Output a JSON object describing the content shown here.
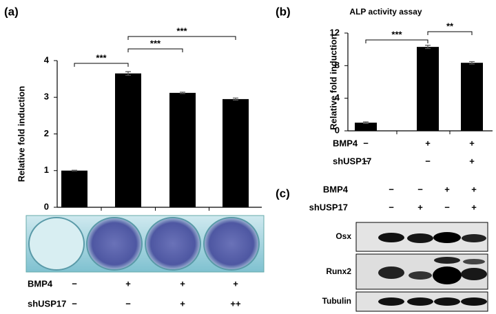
{
  "chart_data": [
    {
      "type": "bar",
      "panel_label": "(a)",
      "y_label": "Relative fold induction",
      "categories": [
        null,
        null,
        null,
        null
      ],
      "values": [
        1.0,
        3.65,
        3.12,
        2.95
      ],
      "errors": [
        0.01,
        0.05,
        0.02,
        0.03
      ],
      "color": "#000000",
      "ylim": [
        0,
        4
      ],
      "yticks": [
        0,
        1,
        2,
        3,
        4
      ],
      "annotations": [
        "***",
        "***",
        "***"
      ],
      "treatments": [
        {
          "label": "BMP4",
          "signs": [
            "−",
            "+",
            "+",
            "+"
          ]
        },
        {
          "label": "shUSP17",
          "signs": [
            "−",
            "−",
            "+",
            "++"
          ]
        }
      ]
    },
    {
      "type": "bar",
      "panel_label": "(b)",
      "title": "ALP activity assay",
      "y_label": "Relative fold induction",
      "categories": [
        null,
        null,
        null
      ],
      "values": [
        1.0,
        10.3,
        8.35
      ],
      "errors": [
        0.1,
        0.2,
        0.15
      ],
      "color": "#000000",
      "ylim": [
        0,
        12
      ],
      "yticks": [
        0,
        4,
        8,
        12
      ],
      "annotations": [
        "***",
        "**"
      ],
      "treatments": [
        {
          "label": "BMP4",
          "signs": [
            "−",
            "+",
            "+"
          ]
        },
        {
          "label": "shUSP17",
          "signs": [
            "−",
            "−",
            "+"
          ]
        }
      ]
    }
  ],
  "blot": {
    "panel_label": "(c)",
    "treatments": [
      {
        "label": "BMP4",
        "signs": [
          "−",
          "−",
          "+",
          "+"
        ]
      },
      {
        "label": "shUSP17",
        "signs": [
          "−",
          "+",
          "−",
          "+"
        ]
      }
    ],
    "rows": [
      "Osx",
      "Runx2",
      "Tubulin"
    ]
  }
}
